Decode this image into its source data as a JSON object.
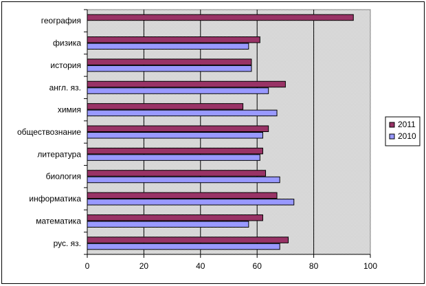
{
  "chart_data": {
    "type": "bar",
    "orientation": "horizontal",
    "categories": [
      "география",
      "физика",
      "история",
      "англ. яз.",
      "химия",
      "обществознание",
      "литература",
      "биология",
      "информатика",
      "математика",
      "рус. яз."
    ],
    "series": [
      {
        "name": "2011",
        "color": "#993366",
        "values": [
          94,
          61,
          58,
          70,
          55,
          64,
          62,
          63,
          67,
          62,
          71
        ]
      },
      {
        "name": "2010",
        "color": "#9999ff",
        "values": [
          null,
          57,
          58,
          64,
          67,
          62,
          61,
          68,
          73,
          57,
          68
        ]
      }
    ],
    "x_ticks": [
      "0",
      "20",
      "40",
      "60",
      "80",
      "100"
    ],
    "xlim": [
      0,
      100
    ],
    "grid": "vertical",
    "plot_background": "#c0c0c0",
    "legend": {
      "placement": "right",
      "items": [
        "2011",
        "2010"
      ]
    }
  }
}
